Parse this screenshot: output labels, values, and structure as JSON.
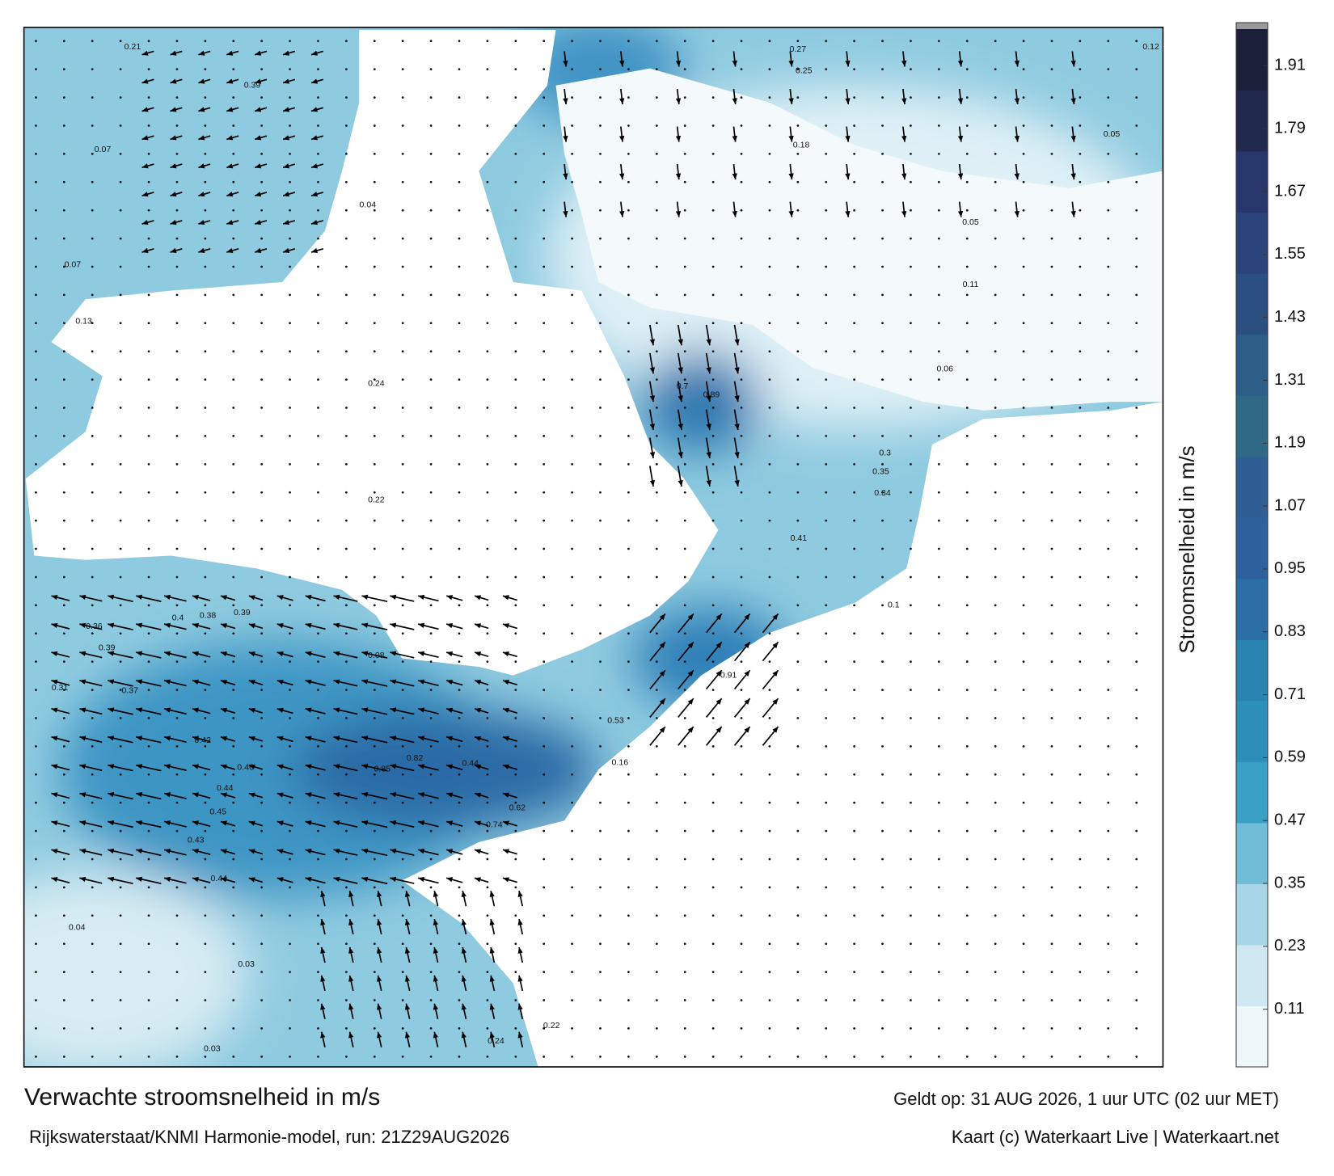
{
  "map": {
    "title": "Verwachte stroomsnelheid in m/s",
    "subtitle": "Rijkswaterstaat/KNMI Harmonie-model, run: 21Z29AUG2026",
    "valid_time": "Geldt op: 31 AUG 2026, 1 uur UTC (02 uur MET)",
    "credit": "Kaart (c) Waterkaart Live | Waterkaart.net",
    "colorbar": {
      "label": "Stroomsnelheid in m/s",
      "lim": [
        0,
        1.98
      ],
      "ticks": [
        0.11,
        0.23,
        0.35,
        0.47,
        0.59,
        0.71,
        0.83,
        0.95,
        1.07,
        1.19,
        1.31,
        1.43,
        1.55,
        1.67,
        1.79,
        1.91
      ],
      "colors": [
        "#eef7fa",
        "#cfe8f1",
        "#a9d6e6",
        "#6fbcd6",
        "#3a9fc4",
        "#2b8fba",
        "#2a84b0",
        "#2c6ea6",
        "#2e609d",
        "#2f5e95",
        "#2e6a86",
        "#2c5e88",
        "#2b4f80",
        "#2a4378",
        "#27376c",
        "#22294f",
        "#1b1f3a"
      ],
      "cap_color": "#9a9a9a"
    },
    "speed_labels": [
      0.21,
      0.07,
      0.39,
      0.4,
      0.38,
      0.39,
      0.36,
      0.39,
      0.31,
      0.37,
      0.42,
      0.46,
      0.44,
      0.45,
      0.44,
      0.43,
      0.04,
      0.03,
      0.03,
      0.82,
      0.85,
      0.44,
      0.62,
      0.74,
      0.91,
      0.89,
      0.7,
      0.27,
      0.25,
      0.18,
      0.06,
      0.05,
      0.11,
      0.3,
      0.35,
      0.34,
      0.41,
      0.1,
      0.05,
      0.12,
      0.22,
      0.24,
      0.53,
      0.16,
      0.08,
      0.22,
      0.24,
      0.04,
      0.07,
      0.13
    ]
  }
}
